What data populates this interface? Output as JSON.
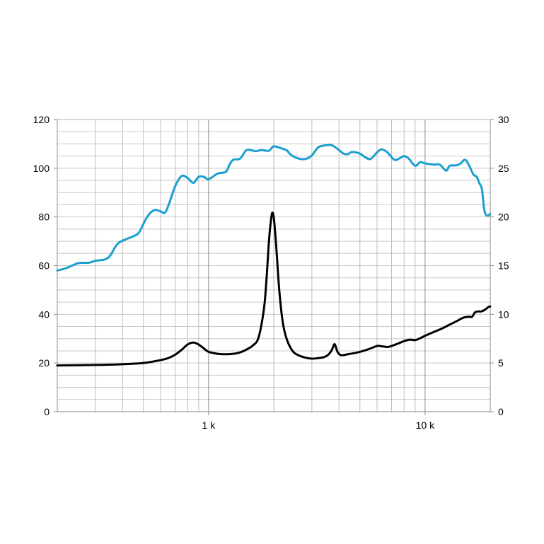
{
  "chart_data": {
    "type": "line",
    "title": "",
    "xlabel": "",
    "ylabel": "",
    "y2label": "",
    "x_scale": "log",
    "xlim": [
      200,
      20000
    ],
    "ylim": [
      0,
      120
    ],
    "y2lim": [
      0,
      30
    ],
    "grid": true,
    "x_ticks": [
      {
        "value": 1000,
        "label": "1 k"
      },
      {
        "value": 10000,
        "label": "10 k"
      }
    ],
    "y_ticks": [
      {
        "value": 0,
        "label": "0"
      },
      {
        "value": 20,
        "label": "20"
      },
      {
        "value": 40,
        "label": "40"
      },
      {
        "value": 60,
        "label": "60"
      },
      {
        "value": 80,
        "label": "80"
      },
      {
        "value": 100,
        "label": "100"
      },
      {
        "value": 120,
        "label": "120"
      }
    ],
    "y2_ticks": [
      {
        "value": 0,
        "label": "0"
      },
      {
        "value": 5,
        "label": "5"
      },
      {
        "value": 10,
        "label": "10"
      },
      {
        "value": 15,
        "label": "15"
      },
      {
        "value": 20,
        "label": "20"
      },
      {
        "value": 25,
        "label": "25"
      },
      {
        "value": 30,
        "label": "30"
      }
    ],
    "series": [
      {
        "axis": "left",
        "color": "#1a9fd0",
        "points": [
          [
            200,
            58
          ],
          [
            220,
            59
          ],
          [
            250,
            61
          ],
          [
            280,
            61.2
          ],
          [
            300,
            62
          ],
          [
            330,
            62.5
          ],
          [
            350,
            64
          ],
          [
            380,
            69
          ],
          [
            420,
            71
          ],
          [
            460,
            72.5
          ],
          [
            480,
            74
          ],
          [
            520,
            80
          ],
          [
            560,
            82.8
          ],
          [
            600,
            82.3
          ],
          [
            630,
            81.8
          ],
          [
            660,
            86
          ],
          [
            700,
            92.5
          ],
          [
            750,
            96.8
          ],
          [
            800,
            96
          ],
          [
            850,
            94
          ],
          [
            900,
            96.5
          ],
          [
            950,
            96.5
          ],
          [
            1000,
            95.5
          ],
          [
            1100,
            97.8
          ],
          [
            1200,
            98.5
          ],
          [
            1250,
            101.5
          ],
          [
            1300,
            103.5
          ],
          [
            1400,
            104
          ],
          [
            1500,
            107.5
          ],
          [
            1650,
            107
          ],
          [
            1750,
            107.5
          ],
          [
            1900,
            107.2
          ],
          [
            2000,
            109
          ],
          [
            2200,
            108
          ],
          [
            2300,
            107.3
          ],
          [
            2400,
            105.5
          ],
          [
            2600,
            104
          ],
          [
            2800,
            103.8
          ],
          [
            3000,
            105.3
          ],
          [
            3200,
            108.5
          ],
          [
            3400,
            109.3
          ],
          [
            3700,
            109.5
          ],
          [
            4000,
            107.5
          ],
          [
            4200,
            106
          ],
          [
            4400,
            105.8
          ],
          [
            4600,
            106.7
          ],
          [
            5000,
            106
          ],
          [
            5300,
            104.5
          ],
          [
            5600,
            103.8
          ],
          [
            6000,
            106.5
          ],
          [
            6300,
            107.8
          ],
          [
            6700,
            106.5
          ],
          [
            7200,
            103.5
          ],
          [
            7600,
            104
          ],
          [
            8000,
            105
          ],
          [
            8400,
            104
          ],
          [
            9000,
            101
          ],
          [
            9500,
            102.5
          ],
          [
            10000,
            102
          ],
          [
            11000,
            101.5
          ],
          [
            11700,
            101.5
          ],
          [
            12500,
            99
          ],
          [
            13000,
            101
          ],
          [
            14000,
            101.2
          ],
          [
            14600,
            102
          ],
          [
            15300,
            103.5
          ],
          [
            16000,
            101
          ],
          [
            16700,
            97.5
          ],
          [
            17300,
            96.5
          ],
          [
            17800,
            94
          ],
          [
            18300,
            91.5
          ],
          [
            18700,
            84
          ],
          [
            19000,
            81.3
          ],
          [
            19500,
            80.5
          ],
          [
            20000,
            81.3
          ]
        ]
      },
      {
        "axis": "right",
        "color": "#000000",
        "points": [
          [
            200,
            4.75
          ],
          [
            300,
            4.8
          ],
          [
            400,
            4.88
          ],
          [
            500,
            5.0
          ],
          [
            600,
            5.3
          ],
          [
            650,
            5.5
          ],
          [
            700,
            5.85
          ],
          [
            750,
            6.35
          ],
          [
            800,
            6.9
          ],
          [
            850,
            7.1
          ],
          [
            900,
            6.9
          ],
          [
            950,
            6.5
          ],
          [
            1000,
            6.15
          ],
          [
            1100,
            5.95
          ],
          [
            1200,
            5.9
          ],
          [
            1300,
            5.95
          ],
          [
            1400,
            6.1
          ],
          [
            1500,
            6.4
          ],
          [
            1600,
            6.8
          ],
          [
            1700,
            7.6
          ],
          [
            1800,
            10.5
          ],
          [
            1850,
            13.5
          ],
          [
            1900,
            17.5
          ],
          [
            1950,
            20.0
          ],
          [
            1980,
            20.4
          ],
          [
            2010,
            19.5
          ],
          [
            2060,
            16.5
          ],
          [
            2120,
            12.5
          ],
          [
            2200,
            9.2
          ],
          [
            2300,
            7.4
          ],
          [
            2450,
            6.2
          ],
          [
            2600,
            5.8
          ],
          [
            2800,
            5.55
          ],
          [
            3000,
            5.45
          ],
          [
            3200,
            5.5
          ],
          [
            3400,
            5.6
          ],
          [
            3550,
            5.8
          ],
          [
            3700,
            6.3
          ],
          [
            3800,
            6.9
          ],
          [
            3850,
            6.8
          ],
          [
            3950,
            6.1
          ],
          [
            4100,
            5.8
          ],
          [
            4400,
            5.9
          ],
          [
            4800,
            6.05
          ],
          [
            5200,
            6.25
          ],
          [
            5600,
            6.5
          ],
          [
            6000,
            6.75
          ],
          [
            6300,
            6.72
          ],
          [
            6700,
            6.65
          ],
          [
            7000,
            6.75
          ],
          [
            7500,
            7.0
          ],
          [
            8000,
            7.25
          ],
          [
            8500,
            7.4
          ],
          [
            9000,
            7.35
          ],
          [
            9500,
            7.55
          ],
          [
            10000,
            7.8
          ],
          [
            11000,
            8.2
          ],
          [
            12000,
            8.55
          ],
          [
            13000,
            8.95
          ],
          [
            14000,
            9.3
          ],
          [
            15000,
            9.65
          ],
          [
            16000,
            9.75
          ],
          [
            16500,
            9.75
          ],
          [
            17000,
            10.2
          ],
          [
            17600,
            10.3
          ],
          [
            18200,
            10.3
          ],
          [
            19000,
            10.5
          ],
          [
            19600,
            10.75
          ],
          [
            20000,
            10.8
          ]
        ]
      }
    ]
  }
}
